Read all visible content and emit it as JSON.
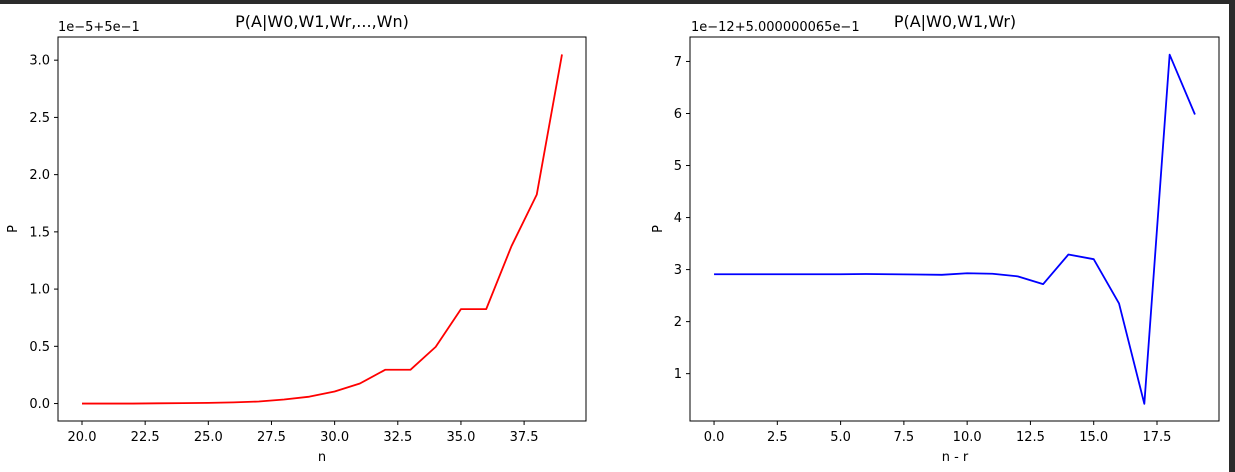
{
  "colors": {
    "series_left": "#ff0000",
    "series_right": "#0000ff"
  },
  "chart_data": [
    {
      "type": "line",
      "title": "P(A|W0,W1,Wr,...,Wn)",
      "offset_text": "1e−5+5e−1",
      "xlabel": "n",
      "ylabel": "P",
      "xlim": [
        19.05,
        39.95
      ],
      "ylim": [
        -0.1525,
        3.2025
      ],
      "grid": false,
      "x_ticks": [
        20.0,
        22.5,
        25.0,
        27.5,
        30.0,
        32.5,
        35.0,
        37.5
      ],
      "x_tick_labels": [
        "20.0",
        "22.5",
        "25.0",
        "27.5",
        "30.0",
        "32.5",
        "35.0",
        "37.5"
      ],
      "y_ticks": [
        0.0,
        0.5,
        1.0,
        1.5,
        2.0,
        2.5,
        3.0
      ],
      "y_tick_labels": [
        "0.0",
        "0.5",
        "1.0",
        "1.5",
        "2.0",
        "2.5",
        "3.0"
      ],
      "series": [
        {
          "color": "#ff0000",
          "x": [
            20,
            21,
            22,
            23,
            24,
            25,
            26,
            27,
            28,
            29,
            30,
            31,
            32,
            33,
            34,
            35,
            36,
            37,
            38,
            39
          ],
          "y": [
            0.0,
            0.0,
            0.0,
            0.002,
            0.004,
            0.006,
            0.01,
            0.018,
            0.035,
            0.06,
            0.105,
            0.175,
            0.295,
            0.295,
            0.495,
            0.825,
            0.825,
            1.375,
            1.825,
            3.05
          ]
        }
      ]
    },
    {
      "type": "line",
      "title": "P(A|W0,W1,Wr)",
      "offset_text": "1e−12+5.000000065e−1",
      "xlabel": "n - r",
      "ylabel": "P",
      "xlim": [
        -0.95,
        19.95
      ],
      "ylim": [
        0.09,
        7.47
      ],
      "grid": false,
      "x_ticks": [
        0.0,
        2.5,
        5.0,
        7.5,
        10.0,
        12.5,
        15.0,
        17.5
      ],
      "x_tick_labels": [
        "0.0",
        "2.5",
        "5.0",
        "7.5",
        "10.0",
        "12.5",
        "15.0",
        "17.5"
      ],
      "y_ticks": [
        1,
        2,
        3,
        4,
        5,
        6,
        7
      ],
      "y_tick_labels": [
        "1",
        "2",
        "3",
        "4",
        "5",
        "6",
        "7"
      ],
      "series": [
        {
          "color": "#0000ff",
          "x": [
            0,
            1,
            2,
            3,
            4,
            5,
            6,
            7,
            8,
            9,
            10,
            11,
            12,
            13,
            14,
            15,
            16,
            17,
            18,
            19
          ],
          "y": [
            2.91,
            2.91,
            2.91,
            2.91,
            2.91,
            2.91,
            2.915,
            2.91,
            2.905,
            2.9,
            2.93,
            2.92,
            2.87,
            2.72,
            3.29,
            3.2,
            2.35,
            0.42,
            7.13,
            5.98
          ]
        }
      ]
    }
  ]
}
